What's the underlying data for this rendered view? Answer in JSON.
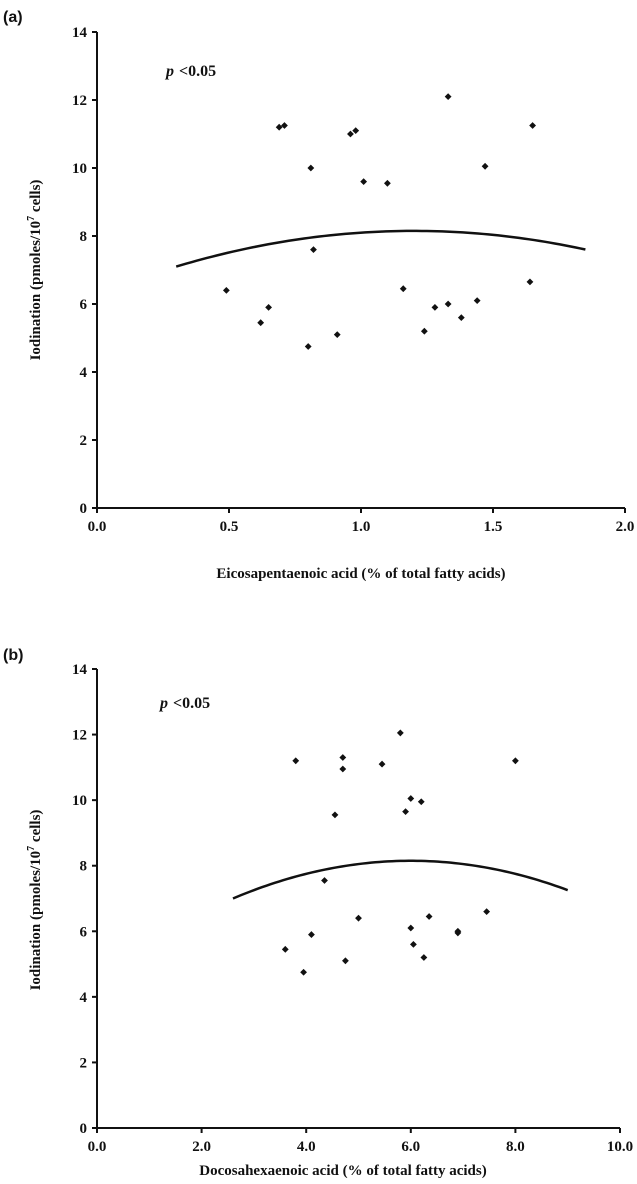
{
  "chart_data": [
    {
      "panel": "(a)",
      "type": "scatter",
      "annotation": {
        "italic": "p",
        "text": "<0.05"
      },
      "xlabel": "Eicosapentaenoic acid (% of total fatty acids)",
      "ylabel": "Iodination (pmoles/10",
      "ylabel_sup": "7",
      "ylabel_end": " cells)",
      "xlim": [
        0,
        2.0
      ],
      "ylim": [
        0,
        14
      ],
      "xticks": [
        0,
        0.5,
        1.0,
        1.5,
        2.0
      ],
      "xtick_labels": [
        "0.0",
        "0.5",
        "1.0",
        "1.5",
        "2.0"
      ],
      "yticks": [
        0,
        2,
        4,
        6,
        8,
        10,
        12,
        14
      ],
      "ytick_labels": [
        "0",
        "2",
        "4",
        "6",
        "8",
        "10",
        "12",
        "14"
      ],
      "grid": false,
      "points": [
        {
          "x": 0.49,
          "y": 6.4
        },
        {
          "x": 0.62,
          "y": 5.45
        },
        {
          "x": 0.65,
          "y": 5.9
        },
        {
          "x": 0.69,
          "y": 11.2
        },
        {
          "x": 0.71,
          "y": 11.25
        },
        {
          "x": 0.8,
          "y": 4.75
        },
        {
          "x": 0.81,
          "y": 10.0
        },
        {
          "x": 0.82,
          "y": 7.6
        },
        {
          "x": 0.91,
          "y": 5.1
        },
        {
          "x": 0.96,
          "y": 11.0
        },
        {
          "x": 0.98,
          "y": 11.1
        },
        {
          "x": 1.01,
          "y": 9.6
        },
        {
          "x": 1.1,
          "y": 9.55
        },
        {
          "x": 1.16,
          "y": 6.45
        },
        {
          "x": 1.24,
          "y": 5.2
        },
        {
          "x": 1.28,
          "y": 5.9
        },
        {
          "x": 1.33,
          "y": 6.0
        },
        {
          "x": 1.33,
          "y": 12.1
        },
        {
          "x": 1.38,
          "y": 5.6
        },
        {
          "x": 1.44,
          "y": 6.1
        },
        {
          "x": 1.47,
          "y": 10.05
        },
        {
          "x": 1.64,
          "y": 6.65
        },
        {
          "x": 1.65,
          "y": 11.25
        }
      ],
      "fit": {
        "x_start": 0.3,
        "x_end": 1.85,
        "y_at_start": 7.1,
        "vertex_x": 1.2,
        "vertex_y": 8.15
      }
    },
    {
      "panel": "(b)",
      "type": "scatter",
      "annotation": {
        "italic": "p",
        "text": "<0.05"
      },
      "xlabel": "Docosahexaenoic acid (% of total fatty acids)",
      "ylabel": "Iodination (pmoles/10",
      "ylabel_sup": "7",
      "ylabel_end": " cells)",
      "xlim": [
        0,
        10.0
      ],
      "ylim": [
        0,
        14
      ],
      "xticks": [
        0,
        2,
        4,
        6,
        8,
        10
      ],
      "xtick_labels": [
        "0.0",
        "2.0",
        "4.0",
        "6.0",
        "8.0",
        "10.0"
      ],
      "yticks": [
        0,
        2,
        4,
        6,
        8,
        10,
        12,
        14
      ],
      "ytick_labels": [
        "0",
        "2",
        "4",
        "6",
        "8",
        "10",
        "12",
        "14"
      ],
      "grid": false,
      "points": [
        {
          "x": 3.6,
          "y": 5.45
        },
        {
          "x": 3.8,
          "y": 11.2
        },
        {
          "x": 3.95,
          "y": 4.75
        },
        {
          "x": 4.1,
          "y": 5.9
        },
        {
          "x": 4.35,
          "y": 7.55
        },
        {
          "x": 4.55,
          "y": 9.55
        },
        {
          "x": 4.7,
          "y": 11.3
        },
        {
          "x": 4.7,
          "y": 10.95
        },
        {
          "x": 4.75,
          "y": 5.1
        },
        {
          "x": 5.0,
          "y": 6.4
        },
        {
          "x": 5.45,
          "y": 11.1
        },
        {
          "x": 5.8,
          "y": 12.05
        },
        {
          "x": 5.9,
          "y": 9.65
        },
        {
          "x": 6.0,
          "y": 10.05
        },
        {
          "x": 6.0,
          "y": 6.1
        },
        {
          "x": 6.05,
          "y": 5.6
        },
        {
          "x": 6.2,
          "y": 9.95
        },
        {
          "x": 6.25,
          "y": 5.2
        },
        {
          "x": 6.35,
          "y": 6.45
        },
        {
          "x": 6.9,
          "y": 5.95
        },
        {
          "x": 6.9,
          "y": 6.0
        },
        {
          "x": 7.45,
          "y": 6.6
        },
        {
          "x": 8.0,
          "y": 11.2
        }
      ],
      "fit": {
        "x_start": 2.6,
        "x_end": 9.0,
        "y_at_start": 7.0,
        "vertex_x": 6.0,
        "vertex_y": 8.15
      }
    }
  ]
}
